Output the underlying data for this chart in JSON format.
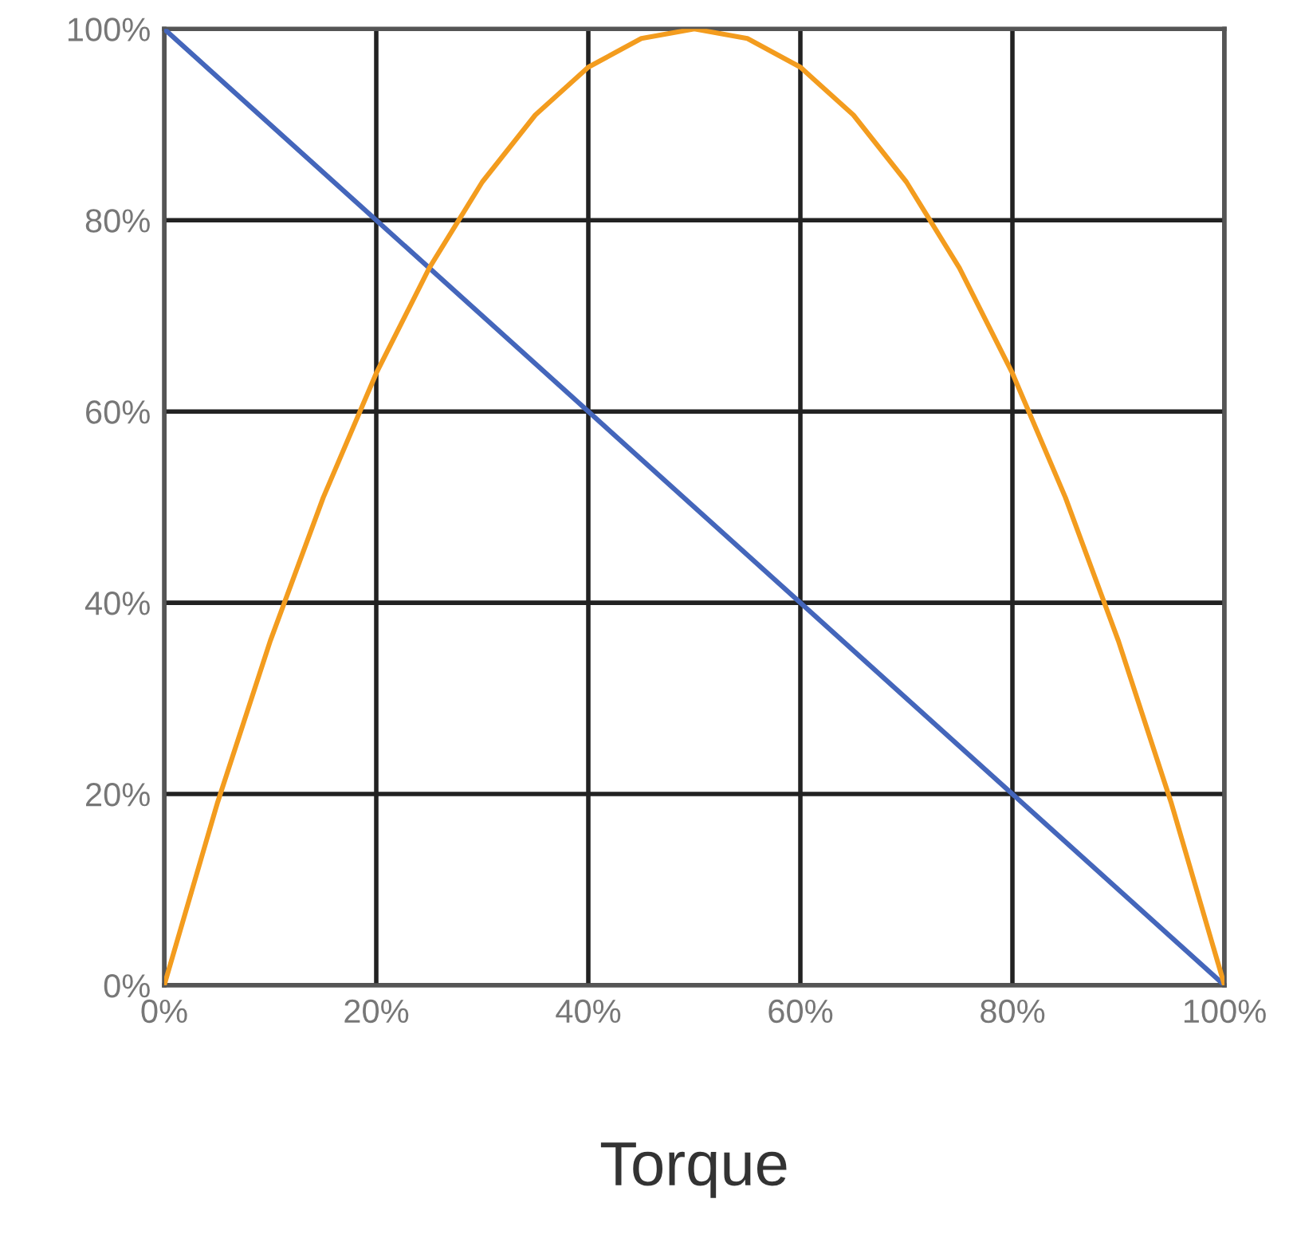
{
  "chart_data": {
    "type": "line",
    "xlabel": "Torque",
    "series": [
      {
        "color": "#4466bb",
        "x": [
          0,
          100
        ],
        "values": [
          100,
          0
        ]
      },
      {
        "color": "#f39c1e",
        "x": [
          0,
          5,
          10,
          15,
          20,
          25,
          30,
          35,
          40,
          45,
          50,
          55,
          60,
          65,
          70,
          75,
          80,
          85,
          90,
          95,
          100
        ],
        "values": [
          0,
          19,
          36,
          51,
          64,
          75,
          84,
          91,
          96,
          99,
          100,
          99,
          96,
          91,
          84,
          75,
          64,
          51,
          36,
          19,
          0
        ]
      }
    ],
    "xlim": [
      0,
      100
    ],
    "ylim": [
      0,
      100
    ],
    "xticks": [
      {
        "value": 0,
        "label": "0%"
      },
      {
        "value": 20,
        "label": "20%"
      },
      {
        "value": 40,
        "label": "40%"
      },
      {
        "value": 60,
        "label": "60%"
      },
      {
        "value": 80,
        "label": "80%"
      },
      {
        "value": 100,
        "label": "100%"
      }
    ],
    "yticks": [
      {
        "value": 0,
        "label": "0%"
      },
      {
        "value": 20,
        "label": "20%"
      },
      {
        "value": 40,
        "label": "40%"
      },
      {
        "value": 60,
        "label": "60%"
      },
      {
        "value": 80,
        "label": "80%"
      },
      {
        "value": 100,
        "label": "100%"
      }
    ],
    "grid": true,
    "legend": false
  }
}
